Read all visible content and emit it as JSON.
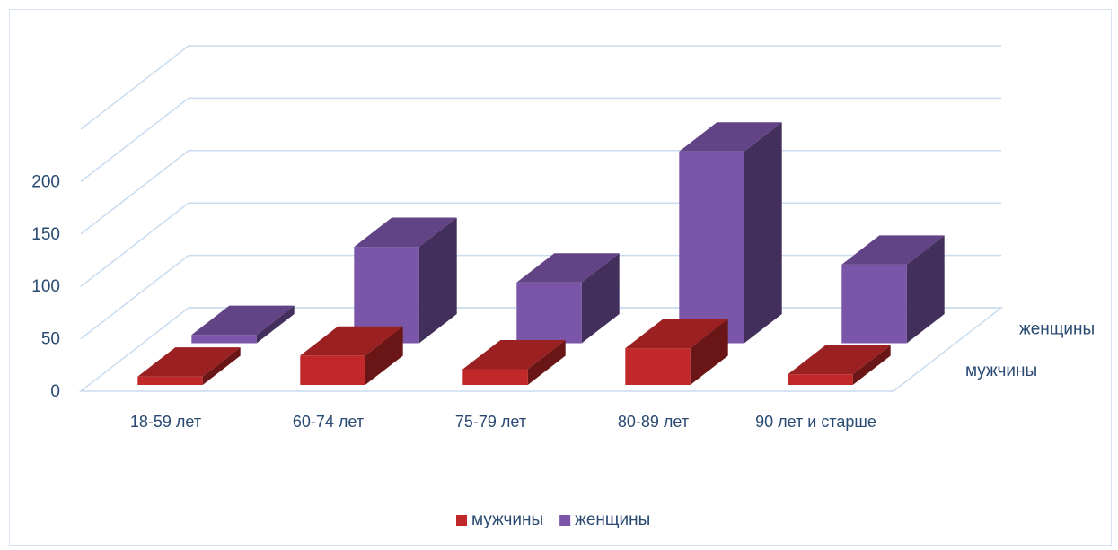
{
  "chart_data": {
    "type": "bar",
    "variant": "3d-column",
    "title": "",
    "xlabel": "",
    "ylabel": "",
    "categories": [
      "18-59 лет",
      "60-74 лет",
      "75-79 лет",
      "80-89 лет",
      "90 лет и старше"
    ],
    "series": [
      {
        "name": "мужчины",
        "values": [
          8,
          28,
          15,
          35,
          10
        ],
        "color": "#c0282a"
      },
      {
        "name": "женщины",
        "values": [
          8,
          92,
          58,
          183,
          75
        ],
        "color": "#7a55a8"
      }
    ],
    "y_ticks": [
      "0",
      "50",
      "100",
      "150",
      "200"
    ],
    "ylim": [
      0,
      250
    ],
    "grid": true,
    "legend": "bottom-center"
  }
}
